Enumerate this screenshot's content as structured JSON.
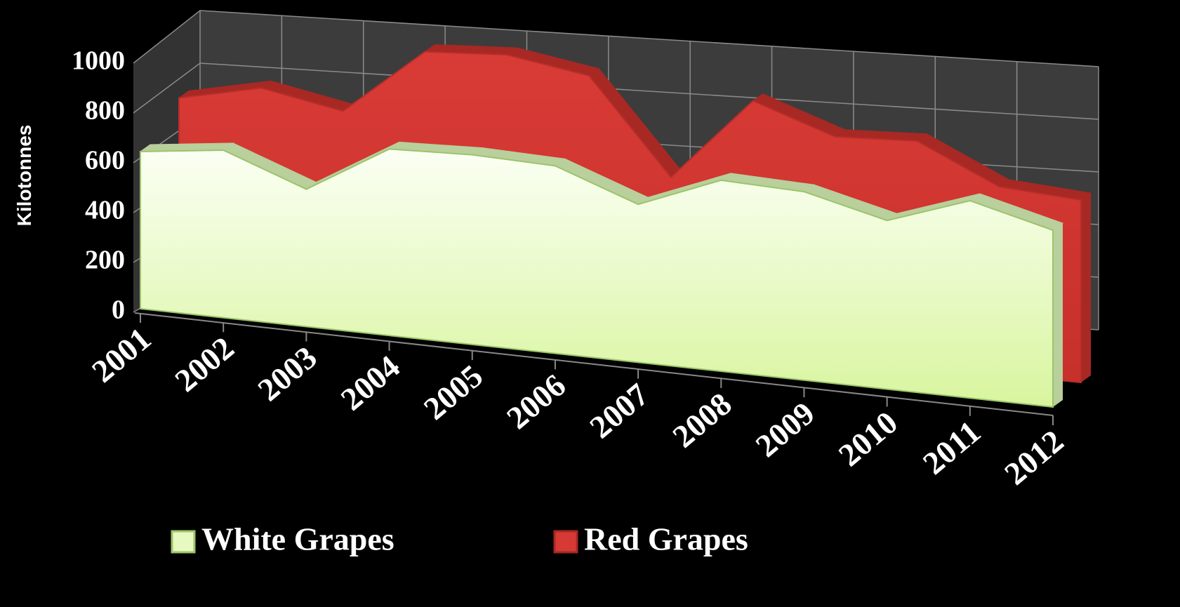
{
  "chart_data": {
    "type": "area3d",
    "y_label": "Kilotonnes",
    "categories": [
      "2001",
      "2002",
      "2003",
      "2004",
      "2005",
      "2006",
      "2007",
      "2008",
      "2009",
      "2010",
      "2011",
      "2012"
    ],
    "series": [
      {
        "name": "White Grapes",
        "color": "#e6f9c0",
        "values": [
          640,
          670,
          540,
          720,
          720,
          700,
          580,
          690,
          670,
          590,
          680,
          600
        ]
      },
      {
        "name": "Red Grapes",
        "color": "#d63a35",
        "values": [
          850,
          910,
          830,
          1090,
          1090,
          1020,
          640,
          950,
          830,
          830,
          680,
          650
        ]
      }
    ],
    "ylim": [
      0,
      1000
    ],
    "yticks": [
      0,
      200,
      400,
      600,
      800,
      1000
    ],
    "grid": true
  }
}
